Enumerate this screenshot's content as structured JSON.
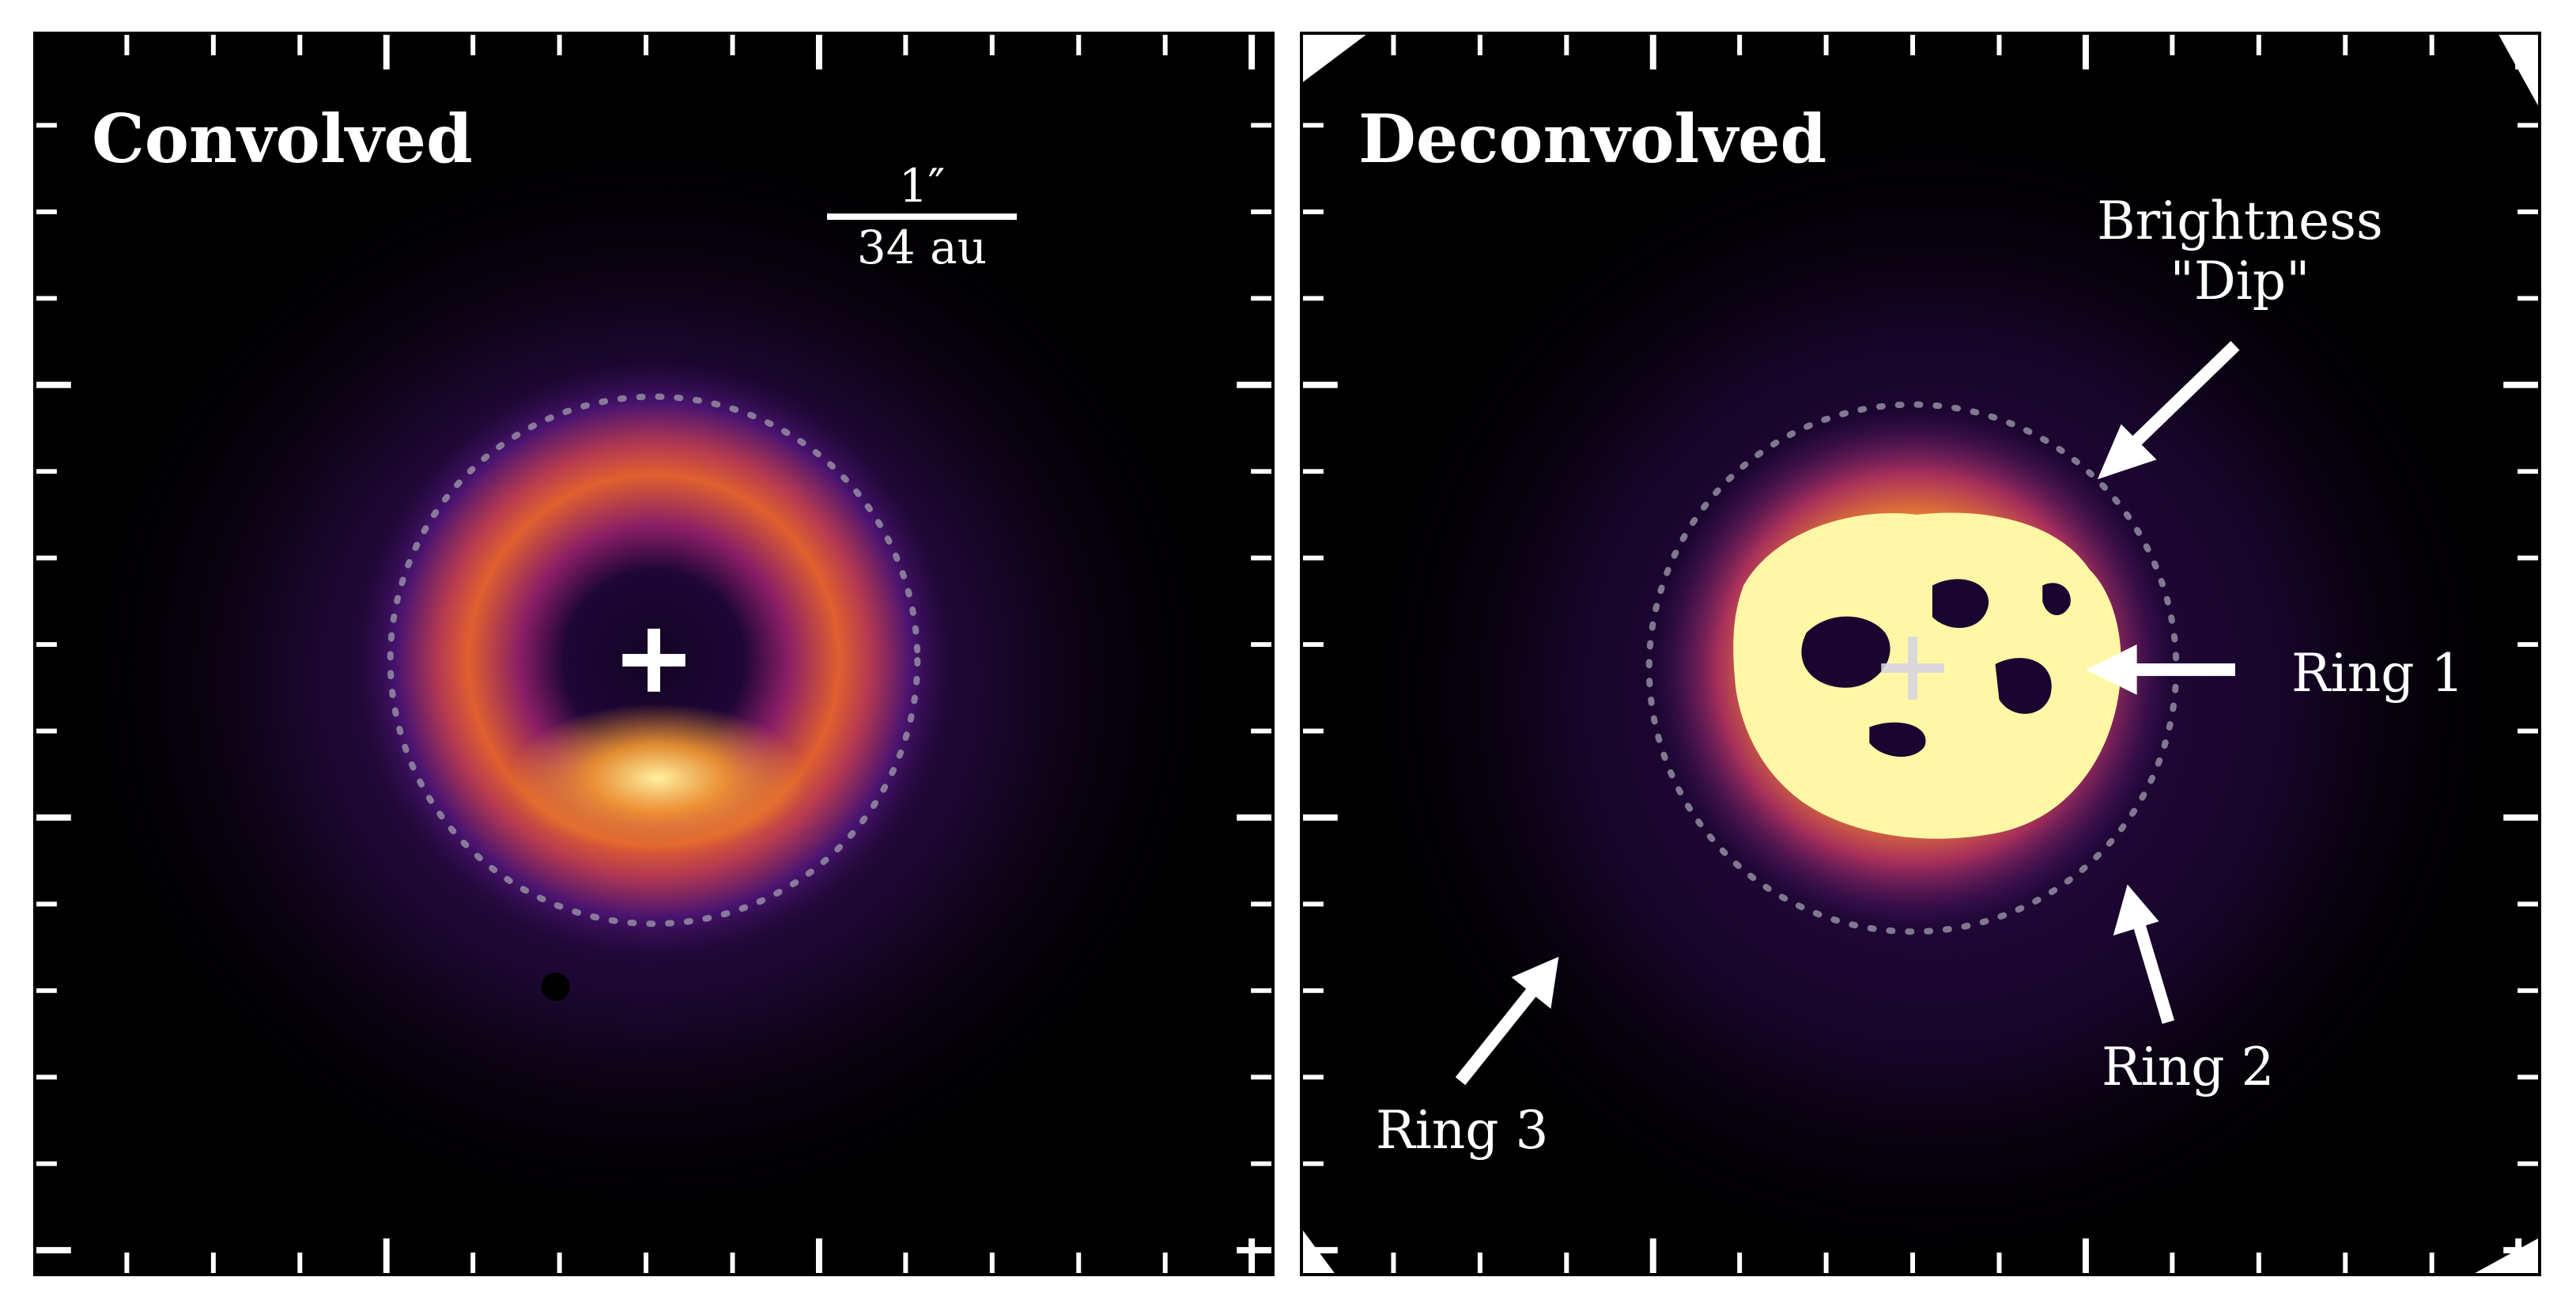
{
  "panels": [
    {
      "title": "Convolved"
    },
    {
      "title": "Deconvolved"
    }
  ],
  "scale_bar": {
    "angular": "1″",
    "physical": "34 au"
  },
  "annotations": {
    "brightness_dip": {
      "line1": "Brightness",
      "line2": "\"Dip\""
    },
    "ring1": "Ring 1",
    "ring2": "Ring 2",
    "ring3": "Ring 3"
  },
  "colors": {
    "background": "#000000",
    "disk_glow": "#3a0c5e",
    "ring_orange": "#f08a2a",
    "ring_yellow": "#fff7a6",
    "annotation": "#ffffff",
    "circle": "#9a95a8"
  },
  "icons": [
    "center-cross-icon",
    "arrow-icon"
  ]
}
